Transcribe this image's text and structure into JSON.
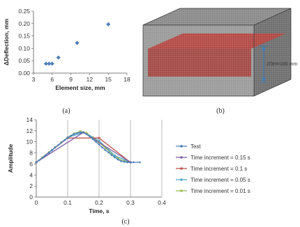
{
  "panels": {
    "a": {
      "caption": "(a)"
    },
    "b": {
      "caption": "(b)",
      "dimension_label": "2/3H=100 mm"
    },
    "c": {
      "caption": "(c)"
    }
  },
  "chart_data": [
    {
      "panel": "a",
      "type": "scatter",
      "xlabel": "Element size, mm",
      "ylabel": "ΔDeflection, mm",
      "xlim": [
        3,
        18
      ],
      "ylim": [
        0,
        0.25
      ],
      "xticks": [
        3,
        6,
        9,
        12,
        15,
        18
      ],
      "yticks": [
        0.0,
        0.05,
        0.1,
        0.15,
        0.2,
        0.25
      ],
      "ytick_labels": [
        "0.00",
        "0.05",
        "0.10",
        "0.15",
        "0.20",
        "0.25"
      ],
      "grid": "none",
      "marker_color": "#4a7ebb",
      "x": [
        5,
        5.5,
        6,
        7,
        10,
        15
      ],
      "y": [
        0.038,
        0.038,
        0.038,
        0.063,
        0.122,
        0.197
      ]
    },
    {
      "panel": "c",
      "type": "line",
      "xlabel": "Time, s",
      "ylabel": "Amplitude",
      "xlim": [
        0,
        0.4
      ],
      "ylim": [
        0,
        14
      ],
      "xticks": [
        0,
        0.1,
        0.2,
        0.3,
        0.4
      ],
      "yticks": [
        0,
        2,
        4,
        6,
        8,
        10,
        12,
        14
      ],
      "grid": "vertical",
      "legend_position": "right",
      "series": [
        {
          "name": "Test",
          "color": "#4a7ebb",
          "x": [
            0,
            0.01,
            0.02,
            0.03,
            0.04,
            0.05,
            0.06,
            0.07,
            0.08,
            0.09,
            0.1,
            0.11,
            0.12,
            0.13,
            0.14,
            0.15,
            0.16,
            0.17,
            0.18,
            0.19,
            0.2,
            0.21,
            0.22,
            0.23,
            0.24,
            0.25,
            0.26,
            0.27,
            0.28,
            0.29,
            0.3,
            0.31,
            0.33
          ],
          "y": [
            6.3,
            6.7,
            7.1,
            7.6,
            8.0,
            8.5,
            9.0,
            9.4,
            9.9,
            10.3,
            10.7,
            11.1,
            11.4,
            11.6,
            11.7,
            11.7,
            11.4,
            11.0,
            10.5,
            10.0,
            9.5,
            9.0,
            8.5,
            8.1,
            7.6,
            7.2,
            6.8,
            6.5,
            6.4,
            6.3,
            6.3,
            6.3,
            6.3
          ]
        },
        {
          "name": "Time increment = 0.15 s",
          "color": "#7e5fa2",
          "x": [
            0,
            0.15,
            0.3
          ],
          "y": [
            6.3,
            11.7,
            6.3
          ]
        },
        {
          "name": "Time increment = 0.1 s",
          "color": "#c0504d",
          "x": [
            0,
            0.1,
            0.2,
            0.3
          ],
          "y": [
            6.3,
            10.7,
            10.7,
            6.3
          ]
        },
        {
          "name": "Time increment = 0.05 s",
          "color": "#4bacc6",
          "x": [
            0,
            0.05,
            0.1,
            0.15,
            0.2,
            0.25,
            0.3
          ],
          "y": [
            6.3,
            8.5,
            10.8,
            11.7,
            10.2,
            7.5,
            6.3
          ]
        },
        {
          "name": "Time increment = 0.01 s",
          "color": "#9bbb59",
          "x": [
            0,
            0.02,
            0.04,
            0.06,
            0.08,
            0.1,
            0.12,
            0.14,
            0.16,
            0.18,
            0.2,
            0.22,
            0.24,
            0.26,
            0.28,
            0.3
          ],
          "y": [
            6.3,
            7.2,
            8.1,
            9.0,
            9.9,
            10.8,
            11.5,
            11.9,
            11.6,
            10.8,
            9.9,
            8.9,
            7.9,
            7.0,
            6.5,
            6.3
          ]
        }
      ]
    }
  ],
  "colors": {
    "axis": "#555555",
    "mesh_top": "#8a8a8a",
    "mesh_side": "#6e6e6e",
    "mesh_front": "#9a9a9a",
    "mesh_red": "#b5423d",
    "dimension_arrow": "#3b7fc0"
  }
}
